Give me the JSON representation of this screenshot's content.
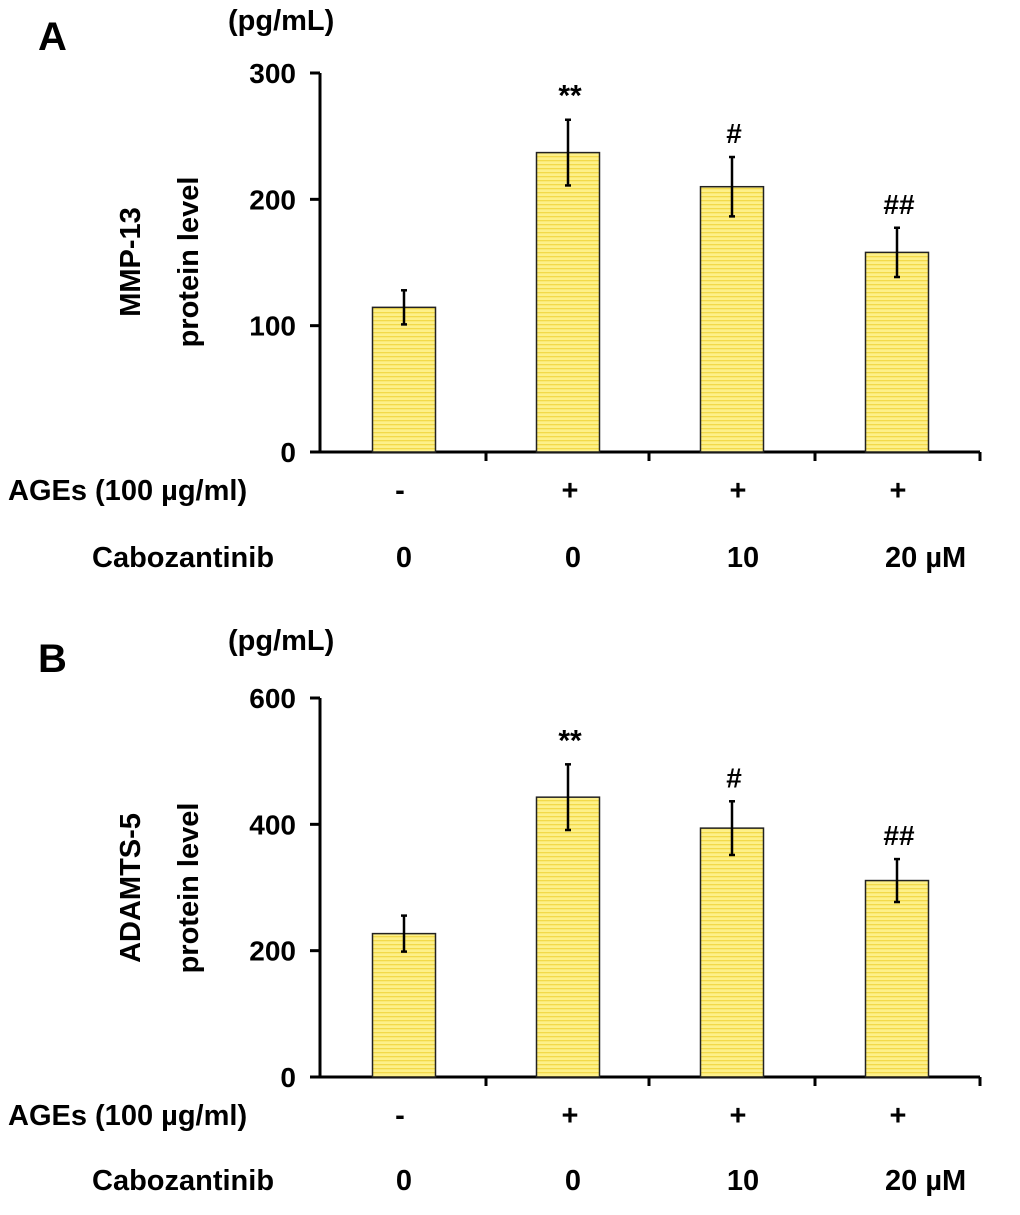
{
  "chart_data": [
    {
      "type": "bar",
      "panel_label": "A",
      "unit_label": "(pg/mL)",
      "ylabel_lines": [
        "MMP-13",
        "protein level"
      ],
      "ylim": [
        0,
        300
      ],
      "yticks": [
        0,
        100,
        200,
        300
      ],
      "categories": [
        "AGEs -, Cabozantinib 0",
        "AGEs +, Cabozantinib 0",
        "AGEs +, Cabozantinib 10",
        "AGEs +, Cabozantinib 20 µM"
      ],
      "values": [
        114.5,
        237,
        210,
        158
      ],
      "errors": [
        13.5,
        26,
        23.5,
        19.5
      ],
      "annotations": [
        "",
        "**",
        "#",
        "##"
      ],
      "row_labels": [
        {
          "label": "AGEs (100 µg/ml)",
          "values": [
            "-",
            "+",
            "+",
            "+"
          ]
        },
        {
          "label": "Cabozantinib",
          "values": [
            "0",
            "0",
            "10",
            "20 µM"
          ]
        }
      ],
      "bar_color": "#fbe97a"
    },
    {
      "type": "bar",
      "panel_label": "B",
      "unit_label": "(pg/mL)",
      "ylabel_lines": [
        "ADAMTS-5",
        "protein level"
      ],
      "ylim": [
        0,
        600
      ],
      "yticks": [
        0,
        200,
        400,
        600
      ],
      "categories": [
        "AGEs -, Cabozantinib 0",
        "AGEs +, Cabozantinib 0",
        "AGEs +, Cabozantinib 10",
        "AGEs +, Cabozantinib 20 µM"
      ],
      "values": [
        227,
        443,
        394,
        311
      ],
      "errors": [
        28.5,
        52,
        42.5,
        34
      ],
      "annotations": [
        "",
        "**",
        "#",
        "##"
      ],
      "row_labels": [
        {
          "label": "AGEs (100 µg/ml)",
          "values": [
            "-",
            "+",
            "+",
            "+"
          ]
        },
        {
          "label": "Cabozantinib",
          "values": [
            "0",
            "0",
            "10",
            "20 µM"
          ]
        }
      ],
      "bar_color": "#fbe97a"
    }
  ]
}
